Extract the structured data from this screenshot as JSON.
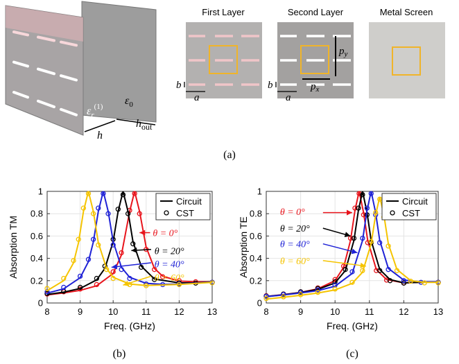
{
  "panel_a": {
    "first": "First Layer",
    "second": "Second Layer",
    "metal": "Metal Screen",
    "b": "b",
    "a": "a",
    "p": "p",
    "x": "x",
    "y": "y",
    "h": "h",
    "out": "out",
    "eps": "ε",
    "r": "r",
    "one": "(1)",
    "zero": "0"
  },
  "captions": [
    "(a)",
    "(b)",
    "(c)"
  ],
  "chart_data": [
    {
      "type": "line",
      "xlabel": "Freq. (GHz)",
      "ylabel": "Absorption TM",
      "xlim": [
        8,
        13
      ],
      "ylim": [
        0,
        1
      ],
      "xticks": [
        8,
        9,
        10,
        11,
        12,
        13
      ],
      "yticks": [
        0,
        0.2,
        0.4,
        0.6,
        0.8,
        1
      ],
      "grid": true,
      "legend": [
        "Circuit",
        "CST"
      ],
      "legend_loc": "upper right",
      "series": [
        {
          "label": "θ = 0°",
          "color": "#e8141c",
          "x": [
            8,
            8.5,
            9,
            9.5,
            10,
            10.25,
            10.5,
            10.65,
            10.8,
            11,
            11.25,
            11.5,
            12,
            12.5,
            13
          ],
          "circuit": [
            0.072,
            0.09,
            0.113,
            0.154,
            0.264,
            0.43,
            0.82,
            1,
            0.82,
            0.5,
            0.31,
            0.24,
            0.196,
            0.19,
            0.19
          ],
          "cst": [
            0.08,
            0.1,
            0.125,
            0.165,
            0.28,
            0.45,
            0.83,
            0.98,
            0.8,
            0.48,
            0.3,
            0.235,
            0.2,
            0.19,
            0.185
          ]
        },
        {
          "label": "θ = 20°",
          "color": "#000000",
          "x": [
            8,
            8.5,
            9,
            9.5,
            9.75,
            10,
            10.15,
            10.3,
            10.45,
            10.6,
            10.85,
            11.25,
            12,
            12.5,
            13
          ],
          "circuit": [
            0.076,
            0.097,
            0.13,
            0.207,
            0.31,
            0.55,
            0.82,
            1,
            0.82,
            0.55,
            0.33,
            0.215,
            0.18,
            0.18,
            0.19
          ],
          "cst": [
            0.085,
            0.105,
            0.14,
            0.22,
            0.33,
            0.57,
            0.84,
            0.97,
            0.8,
            0.53,
            0.32,
            0.21,
            0.18,
            0.178,
            0.185
          ]
        },
        {
          "label": "θ = 40°",
          "color": "#1f22d6",
          "x": [
            8,
            8.5,
            9,
            9.25,
            9.4,
            9.55,
            9.7,
            9.85,
            10,
            10.25,
            10.5,
            11,
            11.5,
            12,
            13
          ],
          "circuit": [
            0.088,
            0.127,
            0.226,
            0.37,
            0.547,
            0.82,
            1,
            0.82,
            0.55,
            0.32,
            0.23,
            0.176,
            0.167,
            0.17,
            0.187
          ],
          "cst": [
            0.1,
            0.14,
            0.24,
            0.39,
            0.57,
            0.85,
            0.98,
            0.8,
            0.52,
            0.3,
            0.22,
            0.17,
            0.165,
            0.17,
            0.185
          ]
        },
        {
          "label": "θ = 60°",
          "color": "#f5c400",
          "x": [
            8,
            8.5,
            8.8,
            8.95,
            9.1,
            9.25,
            9.4,
            9.55,
            9.8,
            10,
            10.5,
            11,
            12,
            13
          ],
          "circuit": [
            0.11,
            0.2,
            0.36,
            0.54,
            0.82,
            1,
            0.82,
            0.54,
            0.31,
            0.23,
            0.17,
            0.157,
            0.166,
            0.185
          ],
          "cst": [
            0.13,
            0.22,
            0.38,
            0.57,
            0.85,
            0.98,
            0.8,
            0.52,
            0.3,
            0.22,
            0.165,
            0.155,
            0.165,
            0.18
          ]
        }
      ]
    },
    {
      "type": "line",
      "xlabel": "Freq. (GHz)",
      "ylabel": "Absorption TE",
      "xlim": [
        8,
        13
      ],
      "ylim": [
        0,
        1
      ],
      "xticks": [
        8,
        9,
        10,
        11,
        12,
        13
      ],
      "yticks": [
        0,
        0.2,
        0.4,
        0.6,
        0.8,
        1
      ],
      "grid": true,
      "legend": [
        "Circuit",
        "CST"
      ],
      "legend_loc": "upper right",
      "series": [
        {
          "label": "θ = 0°",
          "color": "#e8141c",
          "x": [
            8,
            8.5,
            9,
            9.5,
            10,
            10.25,
            10.45,
            10.58,
            10.7,
            10.83,
            10.95,
            11.2,
            11.5,
            12,
            13
          ],
          "circuit": [
            0.058,
            0.075,
            0.095,
            0.127,
            0.2,
            0.32,
            0.56,
            0.83,
            1,
            0.81,
            0.56,
            0.3,
            0.21,
            0.18,
            0.19
          ],
          "cst": [
            0.065,
            0.08,
            0.1,
            0.135,
            0.21,
            0.33,
            0.58,
            0.85,
            0.98,
            0.79,
            0.54,
            0.29,
            0.205,
            0.18,
            0.185
          ]
        },
        {
          "label": "θ = 20°",
          "color": "#000000",
          "x": [
            8,
            8.5,
            9,
            9.5,
            10,
            10.3,
            10.55,
            10.68,
            10.8,
            10.93,
            11.05,
            11.3,
            11.6,
            12,
            13
          ],
          "circuit": [
            0.058,
            0.074,
            0.094,
            0.122,
            0.18,
            0.29,
            0.56,
            0.83,
            1,
            0.81,
            0.56,
            0.3,
            0.21,
            0.18,
            0.19
          ],
          "cst": [
            0.062,
            0.08,
            0.1,
            0.13,
            0.19,
            0.3,
            0.58,
            0.85,
            0.97,
            0.79,
            0.54,
            0.29,
            0.2,
            0.178,
            0.185
          ]
        },
        {
          "label": "θ = 40°",
          "color": "#1f22d6",
          "x": [
            8,
            8.5,
            9,
            9.5,
            10,
            10.5,
            10.8,
            10.93,
            11.05,
            11.18,
            11.3,
            11.55,
            12,
            12.5,
            13
          ],
          "circuit": [
            0.057,
            0.072,
            0.09,
            0.111,
            0.15,
            0.265,
            0.56,
            0.83,
            1,
            0.81,
            0.56,
            0.31,
            0.205,
            0.19,
            0.19
          ],
          "cst": [
            0.06,
            0.076,
            0.094,
            0.118,
            0.16,
            0.28,
            0.58,
            0.85,
            0.98,
            0.79,
            0.54,
            0.3,
            0.2,
            0.185,
            0.185
          ]
        },
        {
          "label": "θ = 60°",
          "color": "#f5c400",
          "x": [
            8,
            8.5,
            9,
            9.5,
            10,
            10.5,
            10.8,
            11.05,
            11.18,
            11.3,
            11.42,
            11.55,
            11.8,
            12.2,
            12.6,
            13
          ],
          "circuit": [
            0.035,
            0.051,
            0.069,
            0.089,
            0.117,
            0.176,
            0.276,
            0.53,
            0.79,
            0.95,
            0.79,
            0.53,
            0.3,
            0.2,
            0.185,
            0.185
          ],
          "cst": [
            0.04,
            0.055,
            0.074,
            0.095,
            0.125,
            0.185,
            0.29,
            0.55,
            0.81,
            0.93,
            0.77,
            0.51,
            0.29,
            0.195,
            0.18,
            0.18
          ]
        }
      ]
    }
  ]
}
